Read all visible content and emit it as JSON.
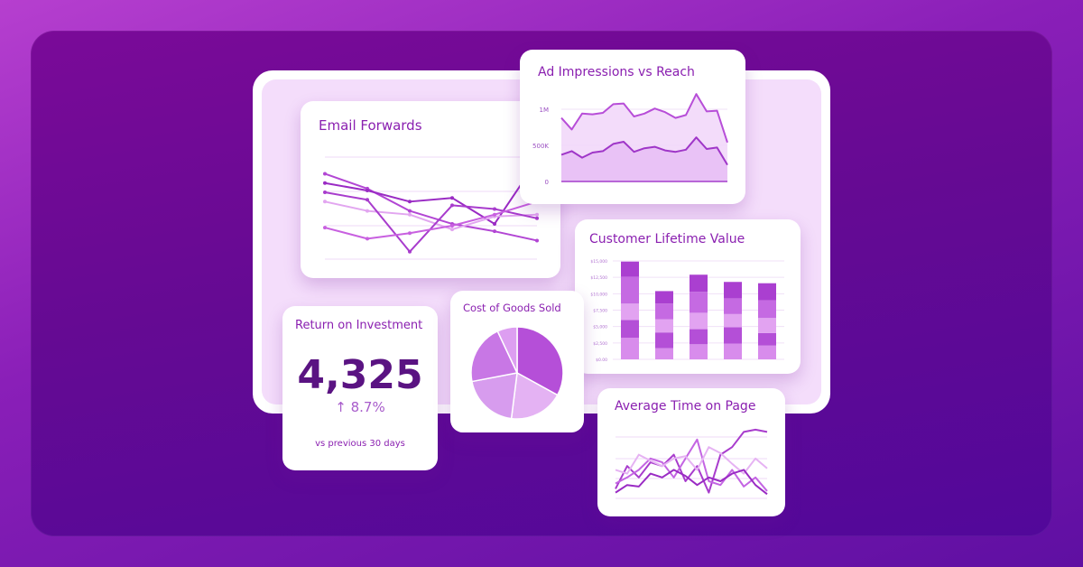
{
  "colors": {
    "background": "#8a1fb8",
    "card": "#ffffff",
    "title": "#8a1fb0",
    "accent": "#b24fd6",
    "accent_light": "#e2b0f0"
  },
  "email_forwards": {
    "title": "Email Forwards",
    "chart_data": {
      "type": "line",
      "x": [
        0,
        1,
        2,
        3,
        4,
        5
      ],
      "series": [
        {
          "values": [
            92,
            76,
            52,
            38,
            30,
            20
          ]
        },
        {
          "values": [
            82,
            74,
            62,
            66,
            38,
            106
          ]
        },
        {
          "values": [
            62,
            52,
            48,
            32,
            46,
            48
          ]
        },
        {
          "values": [
            72,
            64,
            8,
            58,
            54,
            44
          ]
        },
        {
          "values": [
            34,
            22,
            28,
            36,
            48,
            62
          ]
        }
      ]
    }
  },
  "ad_impressions": {
    "title": "Ad Impressions vs Reach",
    "y_ticks": [
      "1M",
      "500K",
      "0"
    ],
    "chart_data": {
      "type": "area",
      "ylim": [
        0,
        1000000
      ],
      "series": [
        {
          "values": [
            880000,
            720000,
            940000,
            930000,
            950000,
            1070000,
            1080000,
            900000,
            940000,
            1010000,
            960000,
            880000,
            920000,
            1210000,
            970000,
            980000,
            540000
          ]
        },
        {
          "values": [
            370000,
            420000,
            330000,
            400000,
            420000,
            520000,
            550000,
            410000,
            460000,
            480000,
            430000,
            410000,
            440000,
            610000,
            450000,
            470000,
            230000
          ]
        }
      ]
    }
  },
  "customer_ltv": {
    "title": "Customer Lifetime Value",
    "y_ticks": [
      "$15,000",
      "$12,500",
      "$10,000",
      "$7,500",
      "$5,000",
      "$2,500",
      "$0.00"
    ],
    "chart_data": {
      "type": "bar",
      "ylim": [
        0,
        15000
      ],
      "bars": [
        {
          "segments": [
            3300,
            2700,
            2500,
            4100,
            2300
          ]
        },
        {
          "segments": [
            1700,
            2400,
            2000,
            2400,
            1900
          ]
        },
        {
          "segments": [
            2300,
            2300,
            2500,
            3200,
            2600
          ]
        },
        {
          "segments": [
            2400,
            2500,
            2000,
            2400,
            2500
          ]
        },
        {
          "segments": [
            2100,
            1900,
            2300,
            2700,
            2600
          ]
        }
      ]
    }
  },
  "roi": {
    "title": "Return on Investment",
    "value": "4,325",
    "change": "↑ 8.7%",
    "subtitle": "vs previous 30 days"
  },
  "cogs": {
    "title": "Cost of Goods Sold",
    "chart_data": {
      "type": "pie",
      "values": [
        33,
        19,
        20,
        21,
        7
      ]
    }
  },
  "avg_time": {
    "title": "Average Time on Page",
    "chart_data": {
      "type": "line",
      "series": [
        {
          "values": [
            15,
            45,
            30,
            50,
            45,
            60,
            25,
            45,
            10,
            60,
            70,
            90,
            93,
            90
          ]
        },
        {
          "values": [
            22,
            30,
            40,
            55,
            50,
            30,
            55,
            80,
            25,
            20,
            40,
            18,
            30,
            12
          ]
        },
        {
          "values": [
            40,
            35,
            60,
            52,
            45,
            55,
            58,
            40,
            70,
            62,
            48,
            35,
            55,
            42
          ]
        },
        {
          "values": [
            10,
            20,
            18,
            35,
            30,
            40,
            32,
            20,
            30,
            25,
            35,
            40,
            20,
            8
          ]
        }
      ]
    }
  }
}
